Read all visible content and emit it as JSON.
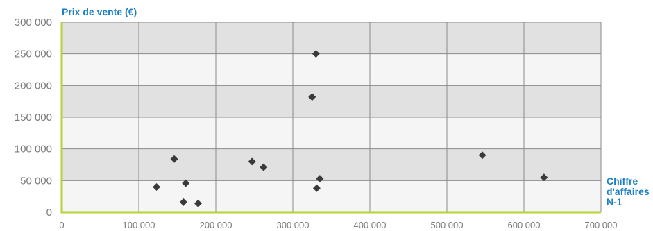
{
  "colors": {
    "accent": "#1b7fc4",
    "axis": "#b5d334",
    "band_dark": "#e1e1e1",
    "band_light": "#f5f5f5",
    "grid": "#8a8a8a",
    "point": "#3a3a3a"
  },
  "chart_data": {
    "type": "scatter",
    "ylabel": "Prix de vente (€)",
    "xlabel_lines": [
      "Chiffre",
      "d'affaires",
      "N-1"
    ],
    "xlim": [
      0,
      700000
    ],
    "ylim": [
      0,
      300000
    ],
    "x_ticks": [
      0,
      100000,
      200000,
      300000,
      400000,
      500000,
      600000,
      700000
    ],
    "x_tick_labels": [
      "0",
      "100 000",
      "200 000",
      "300 000",
      "400 000",
      "500 000",
      "600 000",
      "700 000"
    ],
    "y_ticks": [
      0,
      50000,
      100000,
      150000,
      200000,
      250000,
      300000
    ],
    "y_tick_labels": [
      "0",
      "50 000",
      "100 000",
      "150 000",
      "200 000",
      "250 000",
      "300 000"
    ],
    "grid": true,
    "points": [
      {
        "x": 123000,
        "y": 40000
      },
      {
        "x": 146000,
        "y": 84000
      },
      {
        "x": 158000,
        "y": 16000
      },
      {
        "x": 161000,
        "y": 46000
      },
      {
        "x": 177000,
        "y": 14000
      },
      {
        "x": 247000,
        "y": 80000
      },
      {
        "x": 262000,
        "y": 71000
      },
      {
        "x": 325000,
        "y": 182000
      },
      {
        "x": 330000,
        "y": 250000
      },
      {
        "x": 331000,
        "y": 38000
      },
      {
        "x": 335000,
        "y": 53000
      },
      {
        "x": 546000,
        "y": 90000
      },
      {
        "x": 626000,
        "y": 55000
      }
    ]
  }
}
